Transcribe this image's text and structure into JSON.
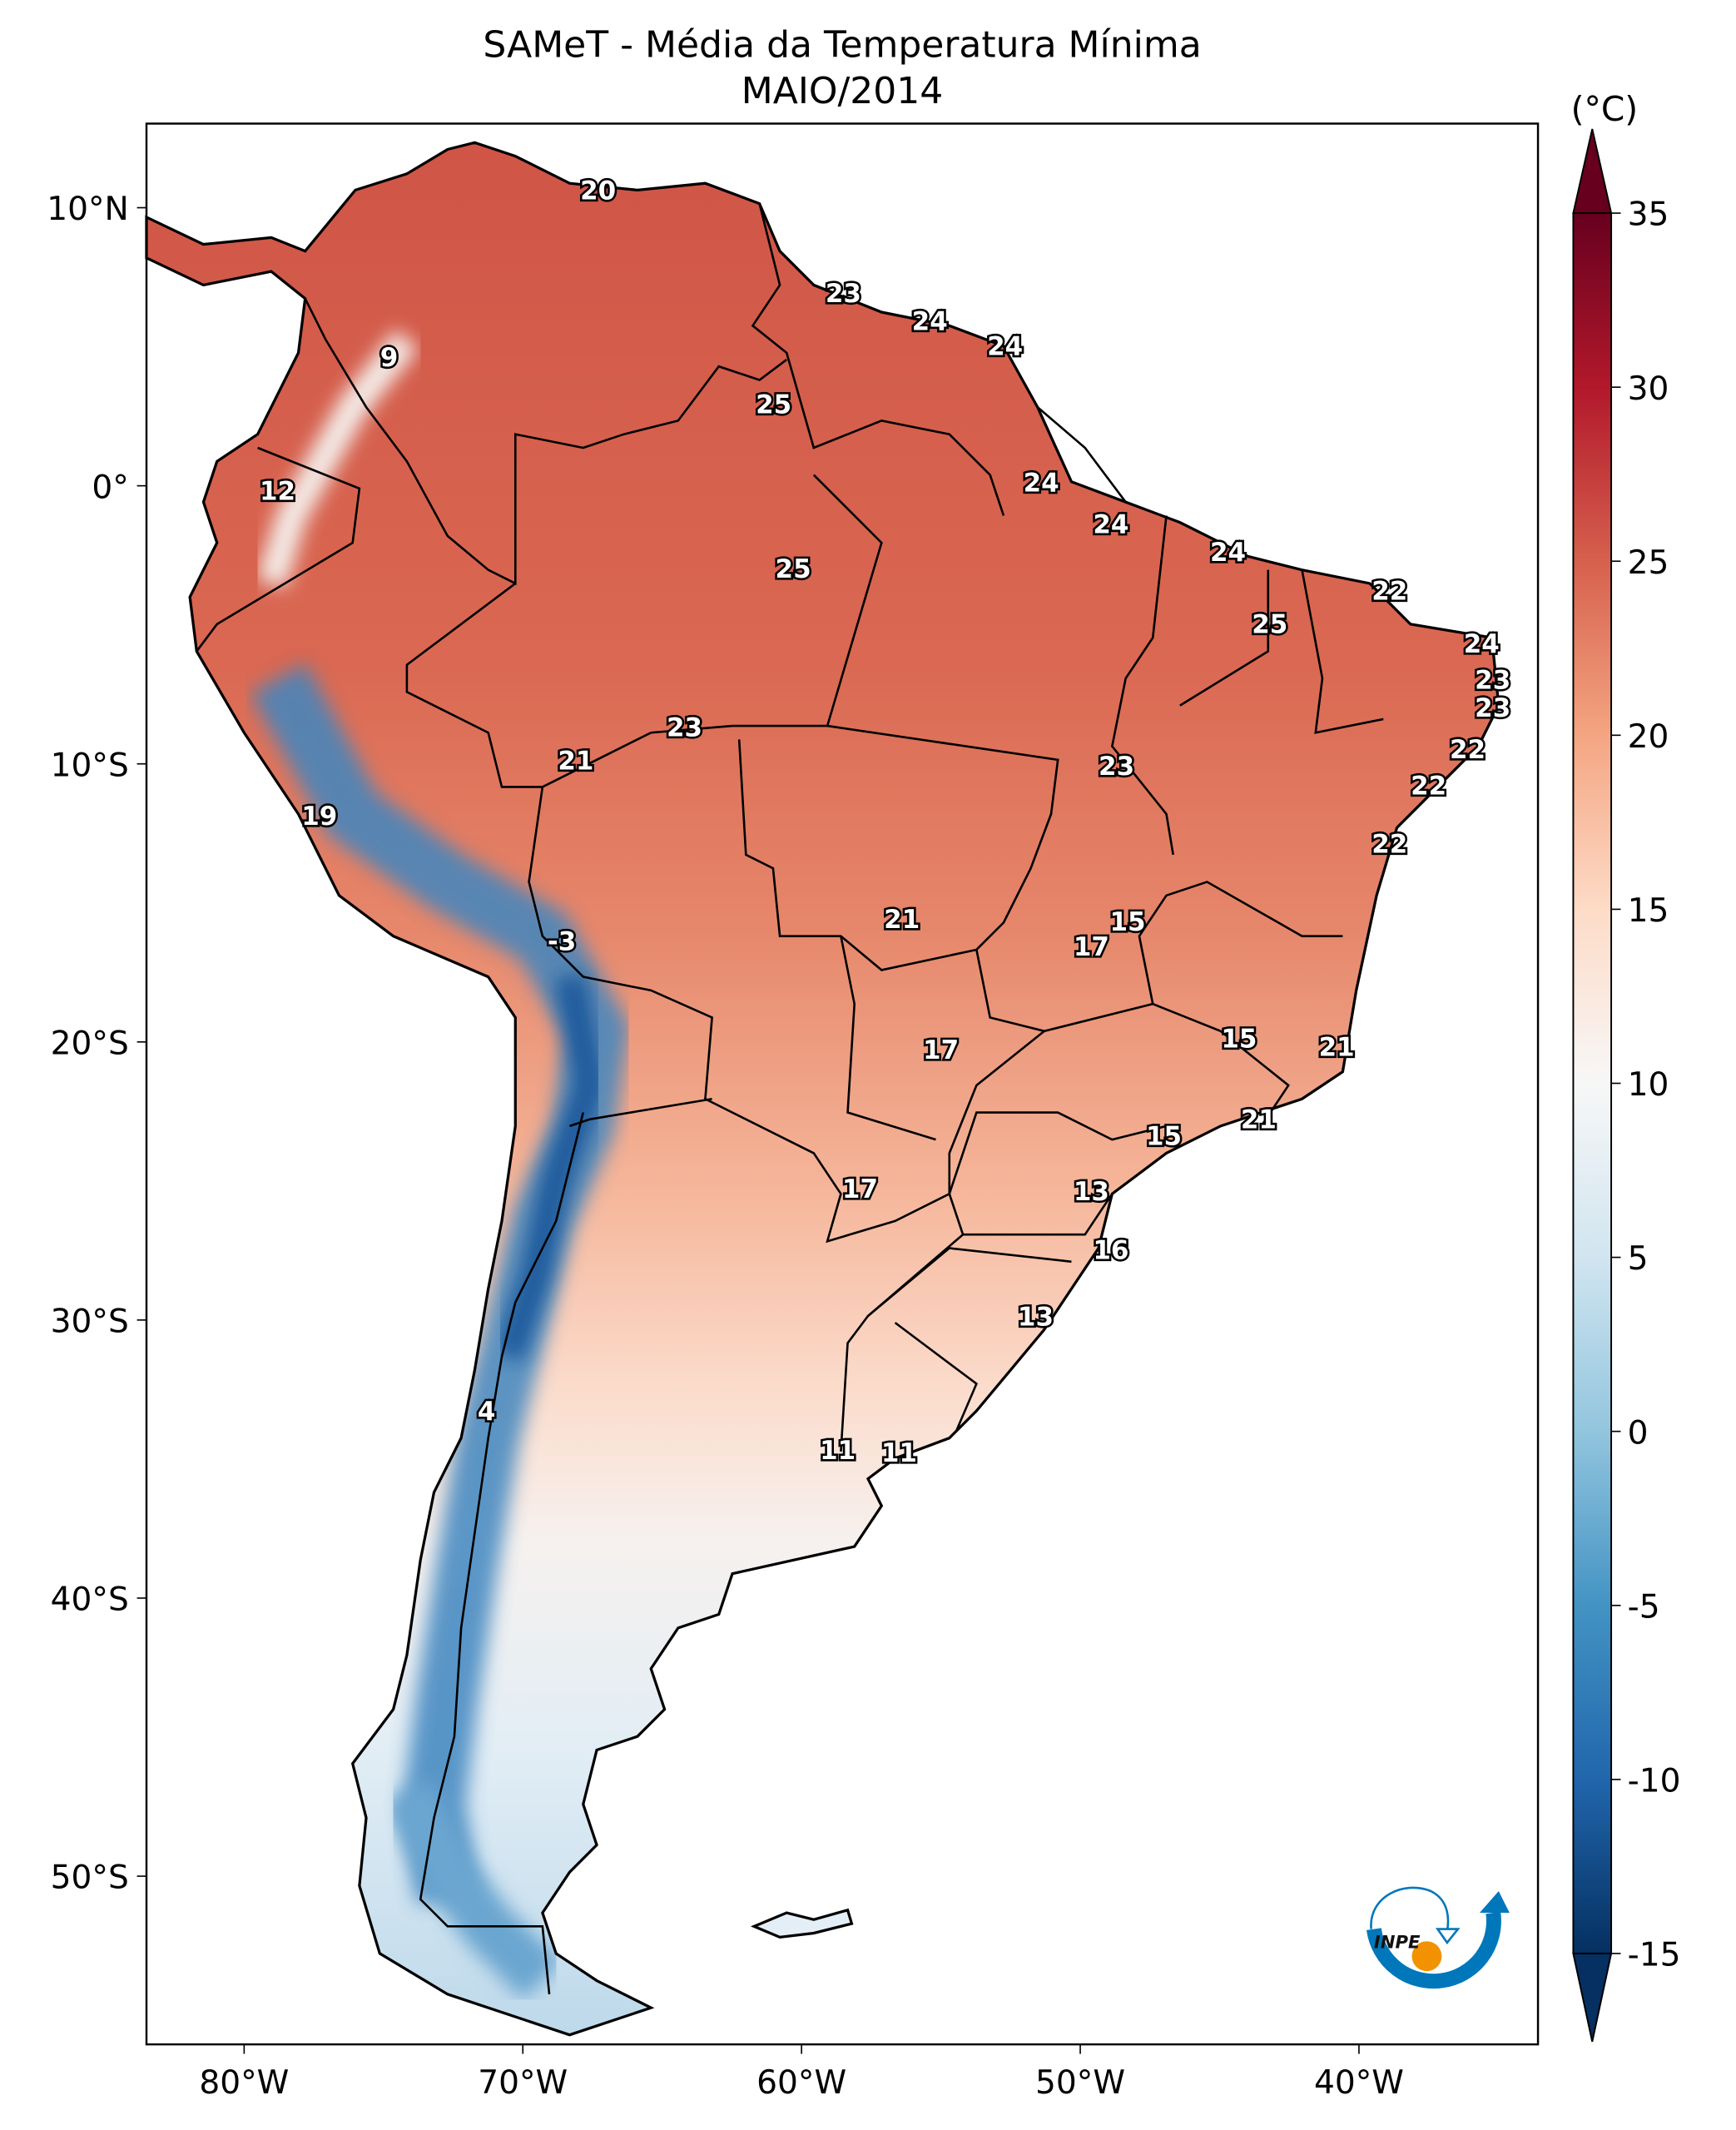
{
  "title": "SAMeT - Média da Temperatura Mínima",
  "subtitle": "MAIO/2014",
  "colorbar": {
    "unit": "(°C)",
    "min": -15,
    "max": 35,
    "extend": "both",
    "colormap": "RdBu_r",
    "ticks": [
      "35",
      "30",
      "25",
      "20",
      "15",
      "10",
      "5",
      "0",
      "-5",
      "-10",
      "-15"
    ],
    "tick_values": [
      35,
      30,
      25,
      20,
      15,
      10,
      5,
      0,
      -5,
      -10,
      -15
    ],
    "stops": [
      {
        "v": -15,
        "c": "#053061"
      },
      {
        "v": -10,
        "c": "#2166ac"
      },
      {
        "v": -5,
        "c": "#4393c3"
      },
      {
        "v": 0,
        "c": "#92c5de"
      },
      {
        "v": 5,
        "c": "#d1e5f0"
      },
      {
        "v": 10,
        "c": "#f7f7f7"
      },
      {
        "v": 15,
        "c": "#fddbc7"
      },
      {
        "v": 20,
        "c": "#f4a582"
      },
      {
        "v": 25,
        "c": "#d6604d"
      },
      {
        "v": 30,
        "c": "#b2182b"
      },
      {
        "v": 35,
        "c": "#67001f"
      }
    ]
  },
  "axes": {
    "lon_ticks": [
      {
        "v": -80,
        "label": "80°W"
      },
      {
        "v": -70,
        "label": "70°W"
      },
      {
        "v": -60,
        "label": "60°W"
      },
      {
        "v": -50,
        "label": "50°W"
      },
      {
        "v": -40,
        "label": "40°W"
      }
    ],
    "lat_ticks": [
      {
        "v": 10,
        "label": "10°N"
      },
      {
        "v": 0,
        "label": "0°"
      },
      {
        "v": -10,
        "label": "10°S"
      },
      {
        "v": -20,
        "label": "20°S"
      },
      {
        "v": -30,
        "label": "30°S"
      },
      {
        "v": -40,
        "label": "40°S"
      },
      {
        "v": -50,
        "label": "50°S"
      }
    ],
    "lon_range": [
      -83.5,
      -33.6
    ],
    "lat_range": [
      -56,
      13
    ]
  },
  "value_labels": [
    {
      "text": "20",
      "lon": -67.3,
      "lat": 10.6
    },
    {
      "text": "23",
      "lon": -58.5,
      "lat": 6.9
    },
    {
      "text": "24",
      "lon": -55.4,
      "lat": 5.9
    },
    {
      "text": "24",
      "lon": -52.7,
      "lat": 5.0
    },
    {
      "text": "9",
      "lon": -74.8,
      "lat": 4.6
    },
    {
      "text": "25",
      "lon": -61.0,
      "lat": 2.9
    },
    {
      "text": "12",
      "lon": -78.8,
      "lat": -0.2
    },
    {
      "text": "24",
      "lon": -51.4,
      "lat": 0.1
    },
    {
      "text": "24",
      "lon": -48.9,
      "lat": -1.4
    },
    {
      "text": "24",
      "lon": -44.7,
      "lat": -2.4
    },
    {
      "text": "25",
      "lon": -60.3,
      "lat": -3.0
    },
    {
      "text": "22",
      "lon": -38.9,
      "lat": -3.8
    },
    {
      "text": "25",
      "lon": -43.2,
      "lat": -5.0
    },
    {
      "text": "24",
      "lon": -35.6,
      "lat": -5.7
    },
    {
      "text": "23",
      "lon": -35.2,
      "lat": -7.0
    },
    {
      "text": "23",
      "lon": -35.2,
      "lat": -8.0
    },
    {
      "text": "23",
      "lon": -64.2,
      "lat": -8.7
    },
    {
      "text": "22",
      "lon": -36.1,
      "lat": -9.5
    },
    {
      "text": "21",
      "lon": -68.1,
      "lat": -9.9
    },
    {
      "text": "23",
      "lon": -48.7,
      "lat": -10.1
    },
    {
      "text": "22",
      "lon": -37.5,
      "lat": -10.8
    },
    {
      "text": "19",
      "lon": -77.3,
      "lat": -11.9
    },
    {
      "text": "22",
      "lon": -38.9,
      "lat": -12.9
    },
    {
      "text": "21",
      "lon": -56.4,
      "lat": -15.6
    },
    {
      "text": "15",
      "lon": -48.3,
      "lat": -15.7
    },
    {
      "text": "-3",
      "lon": -68.6,
      "lat": -16.4
    },
    {
      "text": "17",
      "lon": -49.6,
      "lat": -16.6
    },
    {
      "text": "17",
      "lon": -55.0,
      "lat": -20.3
    },
    {
      "text": "15",
      "lon": -44.3,
      "lat": -19.9
    },
    {
      "text": "21",
      "lon": -40.8,
      "lat": -20.2
    },
    {
      "text": "21",
      "lon": -43.6,
      "lat": -22.8
    },
    {
      "text": "15",
      "lon": -47.0,
      "lat": -23.4
    },
    {
      "text": "17",
      "lon": -57.9,
      "lat": -25.3
    },
    {
      "text": "13",
      "lon": -49.6,
      "lat": -25.4
    },
    {
      "text": "16",
      "lon": -48.9,
      "lat": -27.5
    },
    {
      "text": "13",
      "lon": -51.6,
      "lat": -29.9
    },
    {
      "text": "4",
      "lon": -71.3,
      "lat": -33.3
    },
    {
      "text": "11",
      "lon": -58.7,
      "lat": -34.7
    },
    {
      "text": "11",
      "lon": -56.5,
      "lat": -34.8
    }
  ],
  "logo": {
    "text": "INPE",
    "colors": {
      "blue": "#0077bb",
      "orange": "#f39200"
    }
  }
}
